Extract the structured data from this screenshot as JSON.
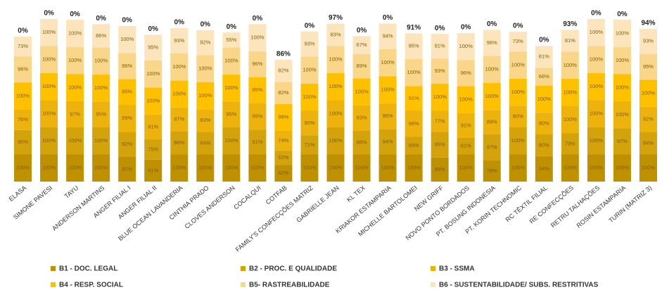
{
  "chart_data": {
    "type": "stacked_bar",
    "categories": [
      "ELASA",
      "SIMONE PAVESI",
      "TAYU",
      "ANDERSON MARTINS",
      "ANGER FILIAL I",
      "ANGER FILIAL II",
      "BLUE OCEAN LAVANDERIA",
      "CINTHIA PRADO",
      "CLOVES ANDERSON",
      "COCALQUI",
      "COTFAB",
      "FAMILY'S CONFECÇÕES MATRIZ",
      "GABRIELLE JEAN",
      "KL TEX",
      "KRIAKOR ESTAMPARIA",
      "MICHELLE BARTOLOMEI",
      "NEW GRIFF",
      "NOVO PONTO BORDADOS",
      "PT. BOSUNG INDONESIA",
      "PT. KORIN TECHNOMIC",
      "RC TÊXTIL FILIAL",
      "RE CONFECÇÕES",
      "RETRU TALHAÇÕES",
      "ROSIN ESTAMPARIA",
      "TURIN (MATRIZ 3)"
    ],
    "series": [
      {
        "name": "B1 - DOC. LEGAL",
        "color": "#bf9000",
        "values": [
          100,
          100,
          100,
          100,
          92,
          81,
          100,
          100,
          100,
          100,
          62,
          100,
          100,
          100,
          100,
          100,
          89,
          100,
          78,
          100,
          94,
          100,
          100,
          100,
          100
        ],
        "value_labels": [
          "100%",
          "100%",
          "100%",
          "100%",
          "92%",
          "81%",
          "100%",
          "100%",
          "100%",
          "100%",
          "62%",
          "100%",
          "100%",
          "100%",
          "100%",
          "100%",
          "89%",
          "100%",
          "78%",
          "100%",
          "94%",
          "100%",
          "100%",
          "100%",
          "100%"
        ]
      },
      {
        "name": "B2 - PROC. E QUALIDADE",
        "color": "#d4a20a",
        "values": [
          90,
          100,
          100,
          100,
          92,
          75,
          86,
          84,
          100,
          91,
          52,
          71,
          100,
          88,
          94,
          65,
          95,
          61,
          97,
          100,
          80,
          79,
          100,
          97,
          84
        ],
        "value_labels": [
          "90%",
          "100%",
          "100%",
          "100%",
          "92%",
          "75%",
          "86%",
          "84%",
          "100%",
          "91%",
          "52%",
          "71%",
          "100%",
          "88%",
          "94%",
          "65%",
          "95%",
          "61%",
          "97%",
          "100%",
          "80%",
          "79%",
          "100%",
          "97%",
          "84%"
        ]
      },
      {
        "name": "B3 - SSMA",
        "color": "#edb20c",
        "values": [
          76,
          100,
          97,
          95,
          99,
          91,
          87,
          83,
          95,
          99,
          74,
          90,
          100,
          93,
          95,
          96,
          77,
          91,
          89,
          80,
          80,
          100,
          100,
          100,
          92
        ],
        "value_labels": [
          "76%",
          "100%",
          "97%",
          "95%",
          "99%",
          "91%",
          "87%",
          "83%",
          "95%",
          "99%",
          "74%",
          "90%",
          "100%",
          "93%",
          "95%",
          "96%",
          "77%",
          "91%",
          "89%",
          "80%",
          "80%",
          "100%",
          "100%",
          "100%",
          "92%"
        ]
      },
      {
        "name": "B4 - RESP. SOCIAL",
        "color": "#ffc000",
        "values": [
          100,
          100,
          100,
          100,
          95,
          100,
          100,
          100,
          100,
          95,
          98,
          100,
          100,
          100,
          100,
          91,
          100,
          100,
          100,
          100,
          100,
          100,
          100,
          100,
          100
        ],
        "value_labels": [
          "100%",
          "100%",
          "100%",
          "100%",
          "95%",
          "100%",
          "100%",
          "100%",
          "100%",
          "95%",
          "98%",
          "100%",
          "100%",
          "100%",
          "100%",
          "91%",
          "100%",
          "100%",
          "100%",
          "100%",
          "100%",
          "100%",
          "100%",
          "100%",
          "100%"
        ]
      },
      {
        "name": "B5- RASTREABILIDADE",
        "color": "#f9d68a",
        "values": [
          96,
          100,
          100,
          100,
          96,
          100,
          100,
          100,
          100,
          96,
          82,
          100,
          100,
          89,
          100,
          100,
          93,
          96,
          100,
          100,
          66,
          100,
          100,
          100,
          95
        ],
        "value_labels": [
          "96%",
          "100%",
          "100%",
          "100%",
          "96%",
          "100%",
          "100%",
          "100%",
          "100%",
          "96%",
          "82%",
          "100%",
          "100%",
          "89%",
          "100%",
          "100%",
          "93%",
          "96%",
          "100%",
          "100%",
          "66%",
          "100%",
          "100%",
          "100%",
          "95%"
        ]
      },
      {
        "name": "B6 - SUSTENTABILIDADE/ SUBS. RESTRITIVAS",
        "color": "#fce5bd",
        "values": [
          73,
          100,
          100,
          86,
          100,
          95,
          93,
          92,
          55,
          100,
          82,
          93,
          83,
          67,
          94,
          95,
          91,
          100,
          96,
          73,
          81,
          81,
          100,
          100,
          93
        ],
        "value_labels": [
          "73%",
          "100%",
          "100%",
          "86%",
          "100%",
          "95%",
          "93%",
          "92%",
          "55%",
          "100%",
          "82%",
          "93%",
          "83%",
          "67%",
          "94%",
          "95%",
          "91%",
          "100%",
          "96%",
          "73%",
          "81%",
          "81%",
          "100%",
          "100%",
          "93%"
        ]
      }
    ],
    "totals": {
      "values": [
        0,
        0,
        0,
        0,
        0,
        0,
        0,
        0,
        0,
        0,
        86,
        0,
        97,
        0,
        0,
        91,
        0,
        0,
        0,
        0,
        0,
        93,
        0,
        0,
        94
      ],
      "value_labels": [
        "0%",
        "0%",
        "0%",
        "0%",
        "0%",
        "0%",
        "0%",
        "0%",
        "0%",
        "0%",
        "86%",
        "0%",
        "97%",
        "0%",
        "0%",
        "91%",
        "0%",
        "0%",
        "0%",
        "0%",
        "0%",
        "93%",
        "0%",
        "0%",
        "94%"
      ]
    },
    "ylim": [
      0,
      670
    ]
  }
}
